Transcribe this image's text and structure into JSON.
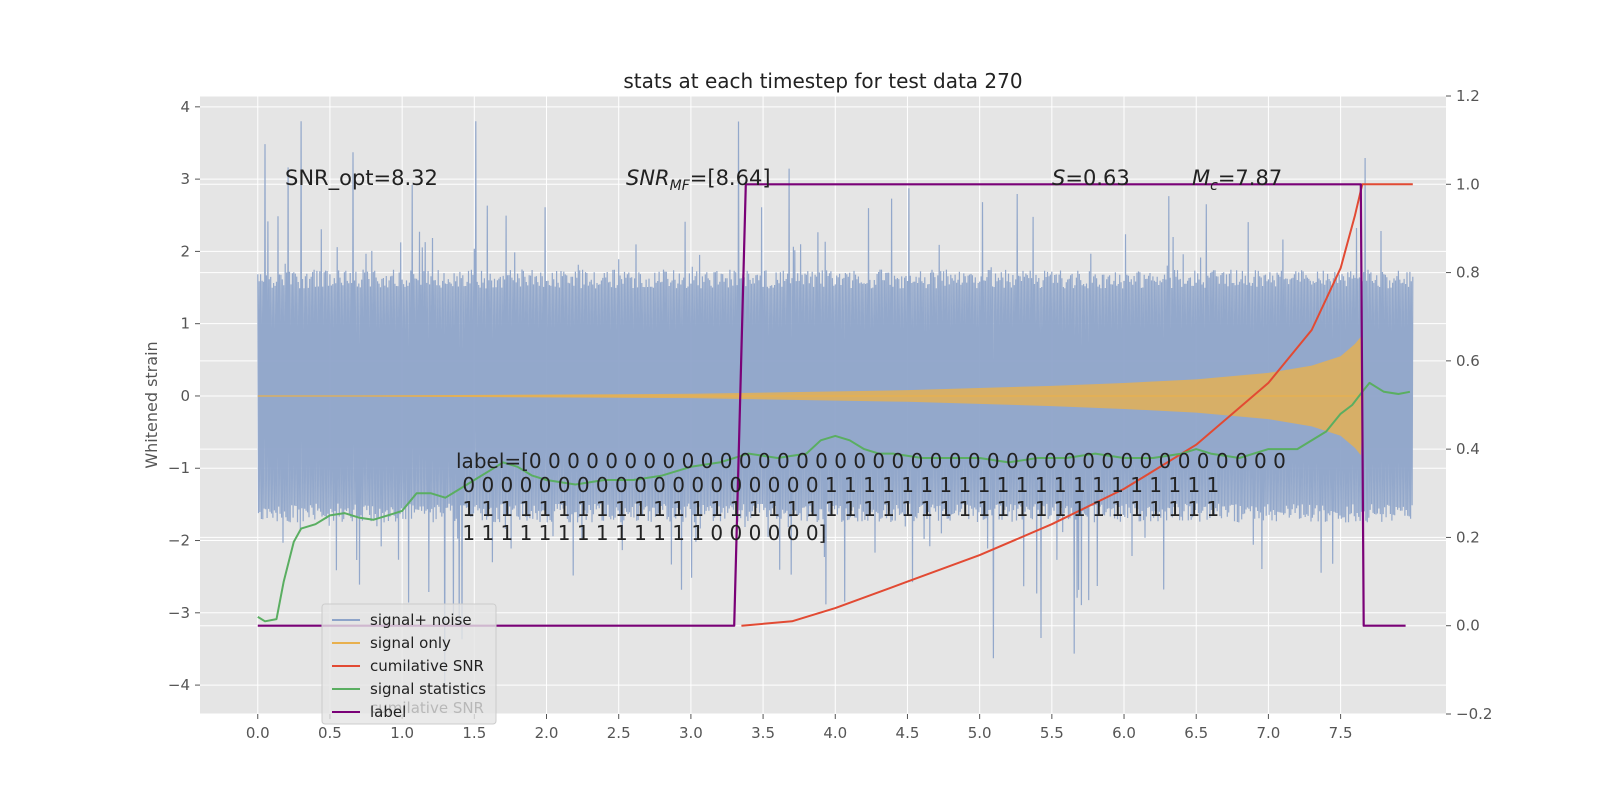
{
  "chart_data": {
    "type": "line",
    "title": "stats at each timestep for test data 270",
    "xlabel": "",
    "ylabel": "Whitened strain",
    "y2label": "",
    "xlim": [
      -0.4,
      8.23
    ],
    "ylim": [
      -4.4,
      4.15
    ],
    "y2lim": [
      -0.2,
      1.2
    ],
    "grid": true,
    "x_ticks": [
      "0.0",
      "0.5",
      "1.0",
      "1.5",
      "2.0",
      "2.5",
      "3.0",
      "3.5",
      "4.0",
      "4.5",
      "5.0",
      "5.5",
      "6.0",
      "6.5",
      "7.0",
      "7.5"
    ],
    "y_ticks": [
      "4",
      "3",
      "2",
      "1",
      "0",
      "−1",
      "−2",
      "−3",
      "−4"
    ],
    "y2_ticks": [
      "1.2",
      "1.0",
      "0.8",
      "0.6",
      "0.4",
      "0.2",
      "0.0",
      "−0.2"
    ],
    "legend_position": "lower-left",
    "colors": {
      "plot_bg": "#e5e5e5",
      "grid": "#ffffff",
      "signal_noise": "#8ea4c9",
      "signal_only": "#e8b04e",
      "cumulative_snr": "#e24a33",
      "signal_statistics": "#5aae61",
      "label": "#7a0177"
    },
    "series": [
      {
        "name": "signal+ noise",
        "kind": "noise-band",
        "x_range": [
          0.0,
          8.0
        ],
        "typical_amplitude": 1.75,
        "peak_max": 3.8,
        "peak_min": -4.05
      },
      {
        "name": "signal only",
        "kind": "chirp-envelope",
        "x": [
          0.0,
          3.0,
          4.5,
          5.5,
          6.0,
          6.5,
          7.0,
          7.3,
          7.5,
          7.6,
          7.64,
          7.66,
          8.0
        ],
        "amplitude": [
          0.0,
          0.03,
          0.08,
          0.14,
          0.18,
          0.23,
          0.32,
          0.42,
          0.55,
          0.72,
          0.82,
          0.0,
          0.0
        ]
      },
      {
        "name": "cumilative SNR",
        "axis": "right",
        "x": [
          3.35,
          3.7,
          4.0,
          4.5,
          5.0,
          5.5,
          6.0,
          6.5,
          7.0,
          7.3,
          7.5,
          7.6,
          7.65,
          8.0
        ],
        "y": [
          0.0,
          0.01,
          0.04,
          0.1,
          0.16,
          0.23,
          0.31,
          0.41,
          0.55,
          0.67,
          0.81,
          0.93,
          1.0,
          1.0
        ]
      },
      {
        "name": "signal statistics",
        "axis": "right",
        "x": [
          0.0,
          0.05,
          0.13,
          0.18,
          0.25,
          0.3,
          0.4,
          0.5,
          0.6,
          0.7,
          0.8,
          0.9,
          1.0,
          1.1,
          1.2,
          1.3,
          1.4,
          1.5,
          1.6,
          1.7,
          1.8,
          1.9,
          2.0,
          2.2,
          2.4,
          2.6,
          2.8,
          3.0,
          3.2,
          3.4,
          3.6,
          3.8,
          3.9,
          4.0,
          4.1,
          4.2,
          4.3,
          4.4,
          4.6,
          4.8,
          5.0,
          5.2,
          5.4,
          5.6,
          5.8,
          6.0,
          6.2,
          6.4,
          6.5,
          6.6,
          6.8,
          7.0,
          7.2,
          7.4,
          7.5,
          7.58,
          7.65,
          7.7,
          7.75,
          7.8,
          7.9,
          7.98
        ],
        "y": [
          0.02,
          0.01,
          0.015,
          0.1,
          0.19,
          0.22,
          0.23,
          0.25,
          0.255,
          0.245,
          0.24,
          0.25,
          0.26,
          0.3,
          0.3,
          0.29,
          0.31,
          0.33,
          0.35,
          0.37,
          0.36,
          0.34,
          0.33,
          0.32,
          0.33,
          0.33,
          0.34,
          0.36,
          0.37,
          0.39,
          0.38,
          0.39,
          0.42,
          0.43,
          0.42,
          0.4,
          0.39,
          0.39,
          0.38,
          0.38,
          0.38,
          0.37,
          0.38,
          0.38,
          0.39,
          0.38,
          0.38,
          0.39,
          0.4,
          0.39,
          0.38,
          0.4,
          0.4,
          0.44,
          0.48,
          0.5,
          0.53,
          0.55,
          0.54,
          0.53,
          0.525,
          0.53
        ]
      },
      {
        "name": "label",
        "axis": "right",
        "x": [
          0.0,
          3.3,
          3.38,
          7.64,
          7.66,
          7.95
        ],
        "y": [
          0.0,
          0.0,
          1.0,
          1.0,
          0.0,
          0.0
        ]
      }
    ],
    "annotations": {
      "snr_opt": "SNR_opt=8.32",
      "snr_mf_label": "SNR",
      "snr_mf_sub": "MF",
      "snr_mf_value": "=[8.64]",
      "s_label": "S",
      "s_value": "=0.63",
      "mc_label": "M",
      "mc_sub": "c",
      "mc_value": "=7.87",
      "label_lines": [
        "label=[0 0 0 0 0 0 0 0 0 0 0 0 0 0 0 0 0 0 0 0 0 0 0 0 0 0 0 0 0 0 0 0 0 0 0 0 0 0 0 0",
        " 0 0 0 0 0 0 0 0 0 0 0 0 0 0 0 0 0 0 0 1 1 1 1 1 1 1 1 1 1 1 1 1 1 1 1 1 1 1 1 1",
        " 1 1 1 1 1 1 1 1 1 1 1 1 1 1 1 1 1 1 1 1 1 1 1 1 1 1 1 1 1 1 1 1 1 1 1 1 1 1 1 1",
        " 1 1 1 1 1 1 1 1 1 1 1 1 1 0 0 0 0 0 0]"
      ],
      "legend_ghost_text": "cumilative SNR"
    }
  }
}
